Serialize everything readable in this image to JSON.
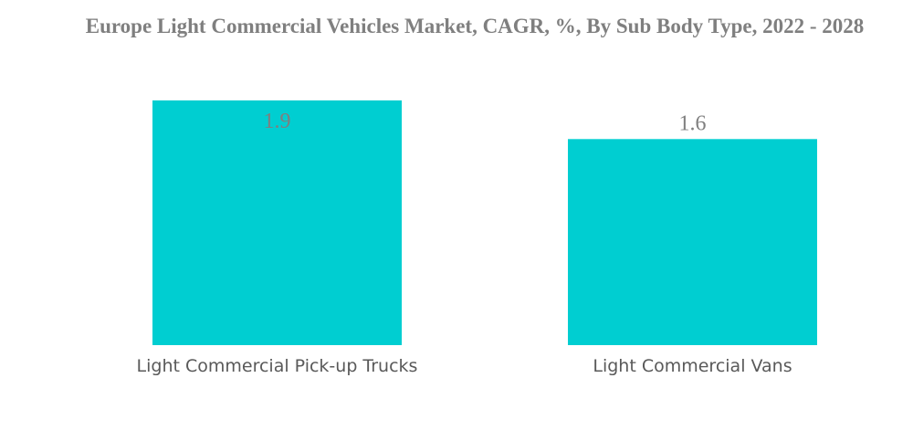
{
  "chart_data": {
    "type": "bar",
    "title": "Europe Light Commercial Vehicles Market, CAGR, %, By Sub Body Type, 2022 - 2028",
    "categories": [
      "Light Commercial Pick-up Trucks",
      "Light Commercial Vans"
    ],
    "values": [
      1.9,
      1.6
    ],
    "data_labels": [
      "1.9",
      "1.6"
    ],
    "xlabel": "",
    "ylabel": "",
    "ylim": [
      0,
      1.9
    ],
    "grid": false,
    "legend": "none",
    "colors": {
      "bar": "#00CED1",
      "title": "#7f7f7f",
      "label": "#595959"
    }
  }
}
